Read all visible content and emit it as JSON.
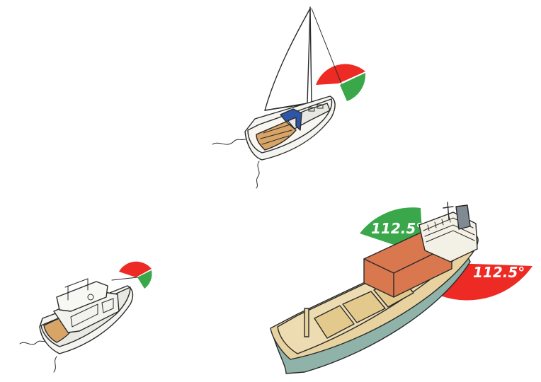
{
  "scene": {
    "sailboat": {
      "lights": [
        "red-sector",
        "green-sector"
      ]
    },
    "motorboat": {
      "lights": [
        "red-sector",
        "green-sector"
      ]
    },
    "cargo_ship": {
      "port_light": {
        "angle_label": "112.5°"
      },
      "starboard_light": {
        "angle_label": "112.5°"
      }
    }
  },
  "colors": {
    "red_light": "#ee2a24",
    "green_light": "#3aa84a",
    "hull_white": "#f4f4f1",
    "deck_wood": "#d9a566",
    "ship_hull": "#e8d3a0",
    "ship_cargo": "#d9774e",
    "ship_keel": "#8fb3a8"
  }
}
